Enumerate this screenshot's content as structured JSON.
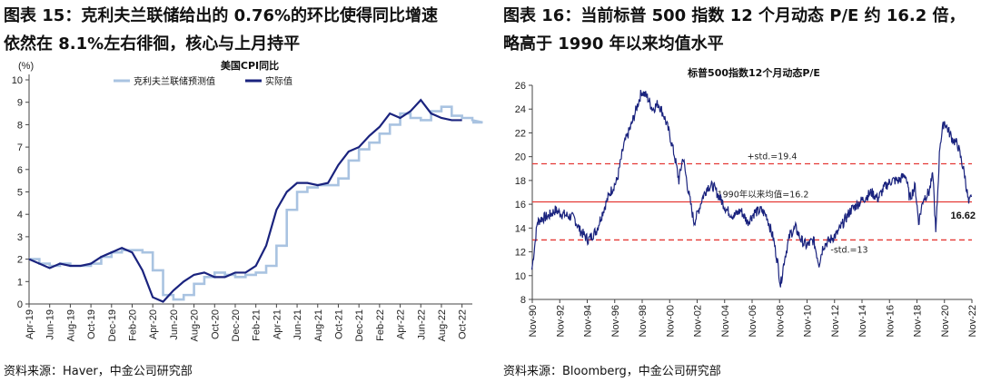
{
  "left": {
    "title_line1": "图表 15：克利夫兰联储给出的 0.76%的环比使得同比增速",
    "title_line2": "依然在 8.1%左右徘徊，核心与上月持平",
    "source": "资料来源：Haver，中金公司研究部",
    "chart_data": {
      "type": "line",
      "title": "美国CPI同比",
      "unit_label": "(%)",
      "ylim": [
        0,
        10
      ],
      "yticks": [
        0,
        1,
        2,
        3,
        4,
        5,
        6,
        7,
        8,
        9,
        10
      ],
      "x_start": "Apr-19",
      "x_ticks": [
        "Apr-19",
        "Jun-19",
        "Aug-19",
        "Oct-19",
        "Dec-19",
        "Feb-20",
        "Apr-20",
        "Jun-20",
        "Aug-20",
        "Oct-20",
        "Dec-20",
        "Feb-21",
        "Apr-21",
        "Jun-21",
        "Aug-21",
        "Oct-21",
        "Dec-21",
        "Feb-22",
        "Apr-22",
        "Jun-22",
        "Aug-22",
        "Oct-22"
      ],
      "grid": false,
      "legend_position": "top",
      "series": [
        {
          "name": "克利夫兰联储预测值",
          "color": "#a9c3e1",
          "style": "step",
          "values": [
            2.0,
            1.8,
            1.7,
            1.8,
            1.7,
            1.7,
            1.8,
            2.1,
            2.3,
            2.4,
            2.4,
            2.3,
            1.5,
            0.4,
            0.2,
            0.4,
            0.9,
            1.2,
            1.4,
            1.3,
            1.2,
            1.3,
            1.4,
            1.7,
            2.6,
            4.2,
            5.0,
            5.2,
            5.3,
            5.3,
            5.6,
            6.4,
            6.9,
            7.2,
            7.6,
            8.0,
            8.5,
            8.3,
            8.2,
            8.6,
            8.8,
            8.4,
            8.3,
            8.2,
            8.1
          ]
        },
        {
          "name": "实际值",
          "color": "#1a237e",
          "style": "line",
          "values": [
            2.0,
            1.8,
            1.6,
            1.8,
            1.7,
            1.7,
            1.8,
            2.1,
            2.3,
            2.5,
            2.3,
            1.5,
            0.3,
            0.1,
            0.6,
            1.0,
            1.3,
            1.4,
            1.2,
            1.2,
            1.4,
            1.4,
            1.7,
            2.6,
            4.2,
            5.0,
            5.4,
            5.4,
            5.3,
            5.4,
            6.2,
            6.8,
            7.0,
            7.5,
            7.9,
            8.5,
            8.3,
            8.6,
            9.1,
            8.5,
            8.3,
            8.2,
            8.2
          ]
        }
      ]
    }
  },
  "right": {
    "title_line1": "图表 16：当前标普 500 指数 12 个月动态 P/E 约 16.2 倍，",
    "title_line2": "略高于 1990 年以来均值水平",
    "source": "资料来源：Bloomberg，中金公司研究部",
    "chart_data": {
      "type": "line",
      "title": "标普500指数12个月动态P/E",
      "ylim": [
        8,
        26
      ],
      "yticks": [
        8,
        10,
        12,
        14,
        16,
        18,
        20,
        22,
        24,
        26
      ],
      "x_start": "Nov-90",
      "x_ticks": [
        "Nov-90",
        "Nov-92",
        "Nov-94",
        "Nov-96",
        "Nov-98",
        "Nov-00",
        "Nov-02",
        "Nov-04",
        "Nov-06",
        "Nov-08",
        "Nov-10",
        "Nov-12",
        "Nov-14",
        "Nov-16",
        "Nov-18",
        "Nov-20",
        "Nov-22"
      ],
      "grid": false,
      "series": [
        {
          "name": "",
          "color": "#1a237e",
          "x": [
            1990.8,
            1991.2,
            1991.5,
            1992.0,
            1992.5,
            1993.0,
            1993.5,
            1993.9,
            1994.3,
            1994.9,
            1995.5,
            1996.0,
            1996.5,
            1997.0,
            1997.5,
            1998.0,
            1998.4,
            1998.8,
            1999.2,
            1999.6,
            2000.0,
            2000.4,
            2000.8,
            2001.2,
            2001.5,
            2001.8,
            2002.2,
            2002.6,
            2002.8,
            2003.2,
            2003.6,
            2004.0,
            2004.5,
            2005.0,
            2005.5,
            2006.0,
            2006.5,
            2007.0,
            2007.5,
            2007.9,
            2008.4,
            2008.7,
            2008.9,
            2009.2,
            2009.6,
            2010.0,
            2010.4,
            2010.8,
            2011.3,
            2011.7,
            2012.0,
            2012.5,
            2013.0,
            2013.5,
            2014.0,
            2014.5,
            2015.0,
            2015.5,
            2016.0,
            2016.5,
            2017.0,
            2017.5,
            2018.0,
            2018.3,
            2018.7,
            2018.95,
            2019.3,
            2019.7,
            2020.0,
            2020.2,
            2020.5,
            2020.8,
            2021.0,
            2021.4,
            2021.8,
            2022.0,
            2022.3,
            2022.6,
            2022.8
          ],
          "y": [
            10.5,
            14.5,
            14.8,
            15.0,
            15.5,
            15.2,
            15.0,
            14.8,
            13.8,
            13.0,
            13.8,
            15.5,
            17.0,
            18.0,
            21.0,
            22.5,
            24.0,
            25.5,
            25.0,
            24.0,
            24.5,
            23.5,
            22.0,
            20.0,
            18.0,
            20.0,
            17.0,
            14.5,
            15.0,
            16.5,
            17.5,
            17.5,
            16.5,
            15.5,
            15.0,
            15.5,
            14.5,
            15.3,
            15.5,
            15.0,
            13.0,
            11.0,
            9.2,
            11.5,
            13.5,
            14.0,
            13.0,
            12.5,
            13.0,
            11.0,
            12.5,
            13.0,
            13.5,
            14.5,
            15.5,
            16.0,
            16.5,
            17.0,
            16.5,
            17.5,
            18.0,
            18.0,
            18.5,
            16.5,
            17.5,
            14.5,
            16.5,
            17.0,
            18.5,
            13.5,
            21.0,
            23.0,
            22.5,
            21.5,
            21.0,
            20.0,
            18.5,
            16.0,
            16.62
          ]
        }
      ],
      "reference_lines": [
        {
          "label": "+std.=19.4",
          "y": 19.4,
          "style": "dashed",
          "color": "#e53935"
        },
        {
          "label": "1990年以来均值=16.2",
          "y": 16.2,
          "style": "solid",
          "color": "#e53935"
        },
        {
          "label": "-std.=13",
          "y": 13,
          "style": "dashed",
          "color": "#e53935"
        }
      ],
      "last_value_label": "16.62"
    }
  }
}
